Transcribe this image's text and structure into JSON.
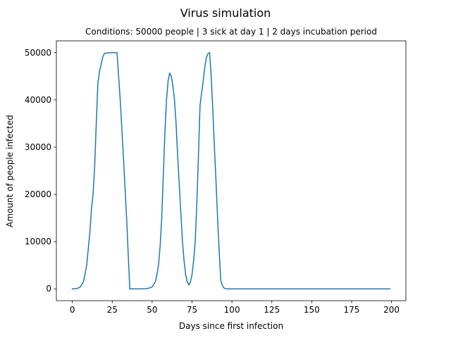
{
  "chart_data": {
    "type": "line",
    "title": "Virus simulation",
    "subtitle": "Conditions: 50000 people | 3 sick at day 1 | 2 days incubation period",
    "xlabel": "Days since first infection",
    "ylabel": "Amount of people infected",
    "xlim": [
      -10,
      209
    ],
    "ylim": [
      -2500,
      52500
    ],
    "xticks": [
      0,
      25,
      50,
      75,
      100,
      125,
      150,
      175,
      200
    ],
    "yticks": [
      0,
      10000,
      20000,
      30000,
      40000,
      50000
    ],
    "grid": false,
    "legend": "none",
    "series": [
      {
        "color": "#1f77b4",
        "x": [
          0,
          3,
          5,
          7,
          9,
          10,
          11,
          12,
          13,
          14,
          15,
          16,
          17,
          18,
          19,
          20,
          21,
          22,
          25,
          28,
          30,
          32,
          34,
          36,
          38,
          42,
          46,
          48,
          50,
          52,
          53,
          54,
          55,
          56,
          57,
          58,
          59,
          60,
          61,
          62,
          63,
          64,
          65,
          66,
          67,
          68,
          69,
          70,
          71,
          72,
          73,
          74,
          75,
          76,
          77,
          78,
          79,
          80,
          81,
          82,
          83,
          84,
          85,
          86,
          87,
          88,
          89,
          90,
          91,
          92,
          93,
          94,
          95,
          96,
          97,
          98,
          99,
          100,
          101,
          102,
          110,
          150,
          199
        ],
        "values": [
          0,
          80,
          400,
          1500,
          5000,
          8500,
          12000,
          17000,
          20000,
          26000,
          35000,
          43500,
          46000,
          47500,
          49000,
          49800,
          49900,
          49950,
          50000,
          50000,
          40000,
          28000,
          15000,
          0,
          0,
          0,
          50,
          150,
          400,
          1500,
          3000,
          5000,
          9000,
          15000,
          24000,
          33000,
          40000,
          44000,
          45700,
          45000,
          43000,
          40000,
          35000,
          28000,
          22000,
          16000,
          10000,
          6000,
          3000,
          1500,
          800,
          1500,
          3000,
          6000,
          10000,
          18000,
          28000,
          38800,
          41500,
          44000,
          47000,
          49000,
          49800,
          50000,
          45000,
          38000,
          30000,
          23000,
          15000,
          8000,
          1800,
          700,
          200,
          50,
          0,
          0,
          0,
          0,
          0,
          0,
          0,
          0,
          0
        ]
      }
    ]
  }
}
